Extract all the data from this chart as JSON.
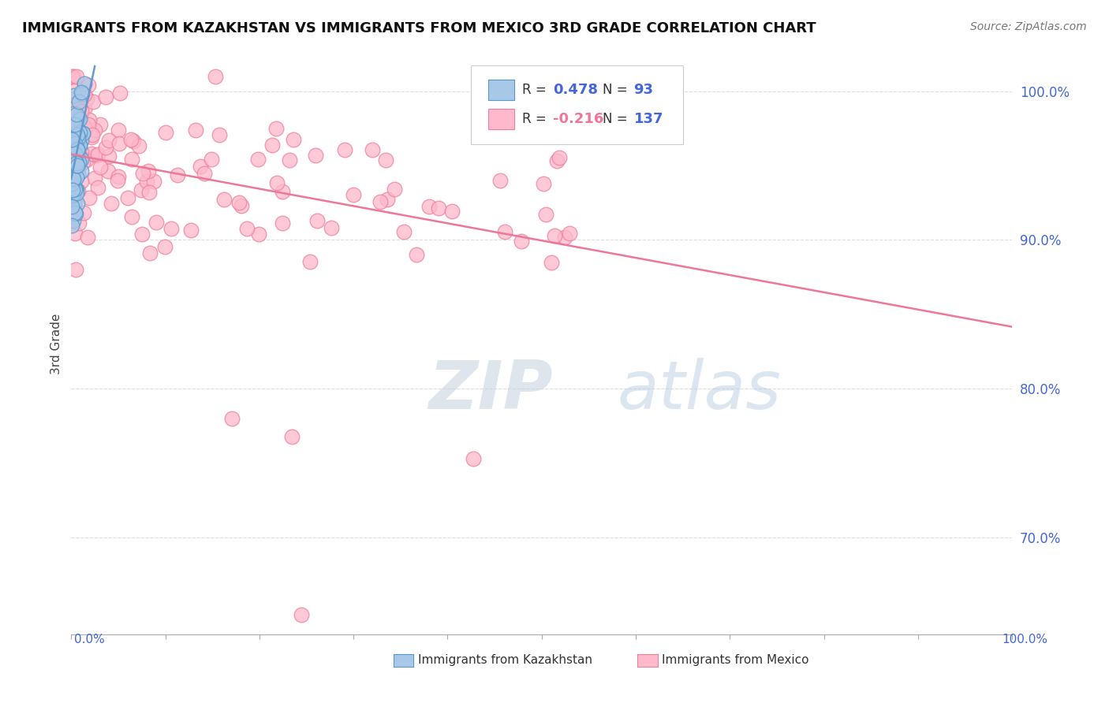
{
  "title": "IMMIGRANTS FROM KAZAKHSTAN VS IMMIGRANTS FROM MEXICO 3RD GRADE CORRELATION CHART",
  "source": "Source: ZipAtlas.com",
  "ylabel": "3rd Grade",
  "watermark_zip": "ZIP",
  "watermark_atlas": "atlas",
  "kaz_R": 0.478,
  "kaz_N": 93,
  "mex_R": -0.216,
  "mex_N": 137,
  "kaz_fill": "#a8c8e8",
  "kaz_edge": "#5599cc",
  "mex_fill": "#ffb8cc",
  "mex_edge": "#ee8099",
  "trend_kaz": "#6699cc",
  "trend_mex": "#ee7799",
  "xlim": [
    0.0,
    1.0
  ],
  "ylim": [
    0.635,
    1.025
  ],
  "yticks": [
    0.7,
    0.8,
    0.9,
    1.0
  ],
  "ytick_labels": [
    "70.0%",
    "80.0%",
    "90.0%",
    "100.0%"
  ],
  "grid_color": "#dddddd",
  "grid_style": "--",
  "bg_color": "#ffffff",
  "title_color": "#111111",
  "source_color": "#777777",
  "tick_label_color": "#4466dd",
  "ylabel_color": "#444444",
  "legend_R_color_kaz": "#4466dd",
  "legend_R_color_mex": "#ee7799",
  "legend_N_color": "#4466dd",
  "bottom_label_color": "#4466dd"
}
